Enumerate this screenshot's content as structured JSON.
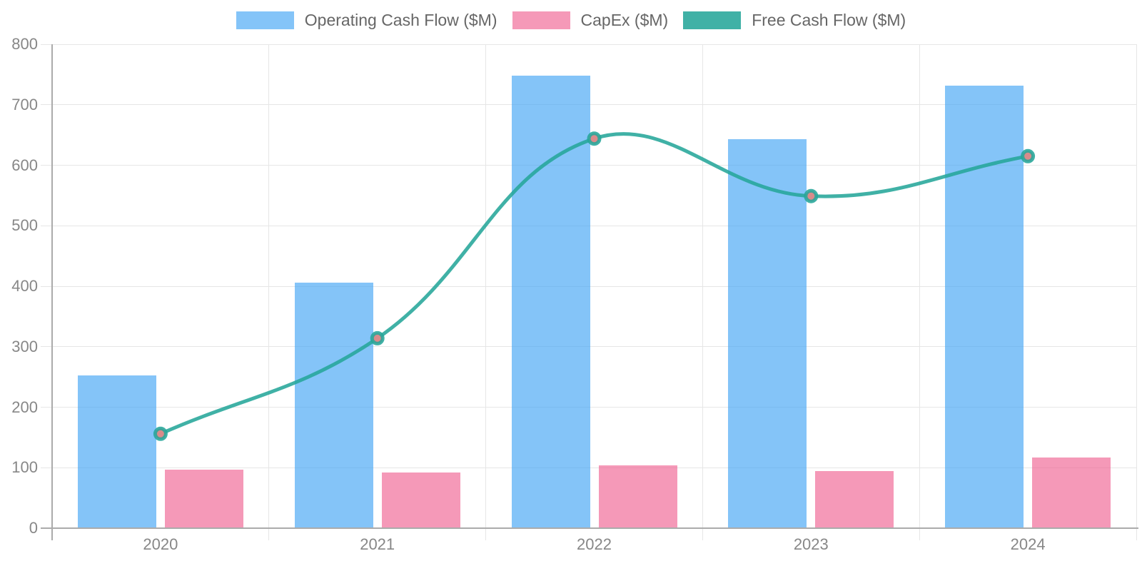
{
  "chart_data": {
    "type": "combo-bar-line",
    "title": "",
    "categories": [
      "2020",
      "2021",
      "2022",
      "2023",
      "2024"
    ],
    "series": [
      {
        "name": "Operating Cash Flow ($M)",
        "type": "bar",
        "color": "rgba(66,165,245,0.65)",
        "values": [
          253,
          406,
          748,
          643,
          732
        ]
      },
      {
        "name": "CapEx ($M)",
        "type": "bar",
        "color": "rgba(240,98,146,0.65)",
        "values": [
          97,
          92,
          104,
          94,
          117
        ]
      },
      {
        "name": "Free Cash Flow ($M)",
        "type": "line",
        "color": "rgba(38,166,154,0.88)",
        "point_fill": "#D98B8B",
        "values": [
          156,
          314,
          644,
          549,
          615
        ]
      }
    ],
    "ylim": [
      0,
      800
    ],
    "y_ticks": [
      0,
      100,
      200,
      300,
      400,
      500,
      600,
      700,
      800
    ],
    "grid": "on",
    "legend_position": "top",
    "line_tension": 0.4,
    "grid_color": "#E6E6E6",
    "axis_color": "#ABABAB",
    "tick_label_color": "#878787",
    "legend_text_color": "#666666",
    "background": "#FFFFFF"
  }
}
